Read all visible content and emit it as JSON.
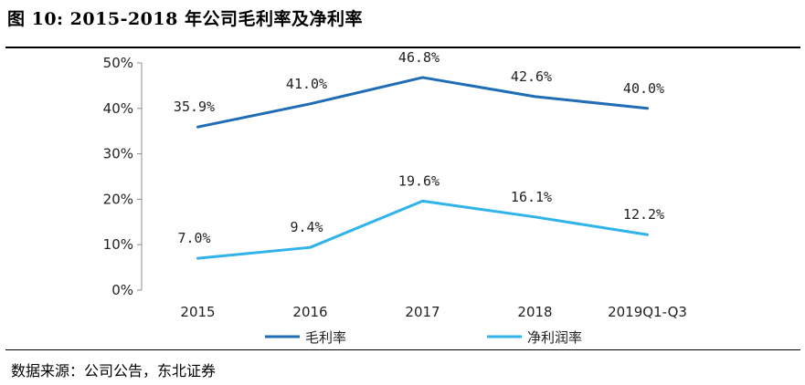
{
  "header": {
    "title": "图 10:  2015-2018 年公司毛利率及净利率"
  },
  "footer": {
    "source": "数据来源：公司公告，东北证券"
  },
  "chart_data": {
    "type": "line",
    "title": "",
    "xlabel": "",
    "ylabel": "",
    "categories": [
      "2015",
      "2016",
      "2017",
      "2018",
      "2019Q1-Q3"
    ],
    "ylim": [
      0,
      50
    ],
    "yticks": [
      0,
      10,
      20,
      30,
      40,
      50
    ],
    "ytick_labels": [
      "0%",
      "10%",
      "20%",
      "30%",
      "40%",
      "50%"
    ],
    "grid": false,
    "legend_position": "bottom",
    "series": [
      {
        "name": "毛利率",
        "color": "#1f6db5",
        "values": [
          35.9,
          41.0,
          46.8,
          42.6,
          40.0
        ],
        "labels": [
          "35.9%",
          "41.0%",
          "46.8%",
          "42.6%",
          "40.0%"
        ]
      },
      {
        "name": "净利润率",
        "color": "#2fb3ea",
        "values": [
          7.0,
          9.4,
          19.6,
          16.1,
          12.2
        ],
        "labels": [
          "7.0%",
          "9.4%",
          "19.6%",
          "16.1%",
          "12.2%"
        ]
      }
    ]
  }
}
